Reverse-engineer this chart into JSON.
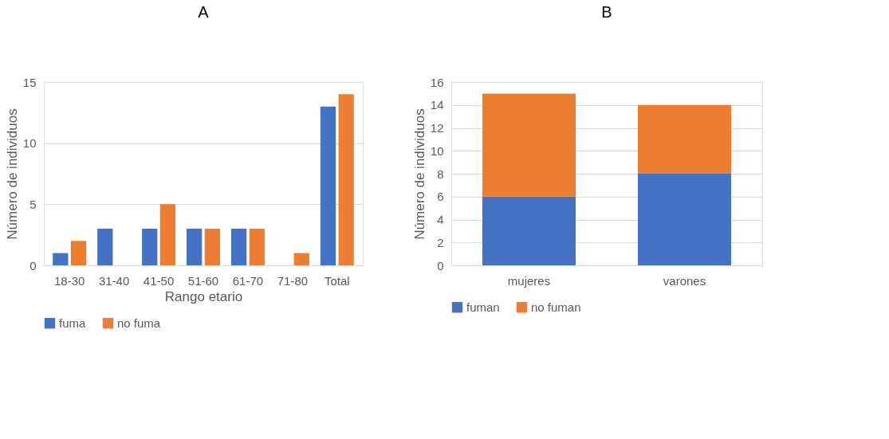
{
  "chart_data": [
    {
      "type": "bar",
      "title": "A",
      "xlabel": "Rango etario",
      "ylabel": "Número de individuos",
      "categories": [
        "18-30",
        "31-40",
        "41-50",
        "51-60",
        "61-70",
        "71-80",
        "Total"
      ],
      "series": [
        {
          "name": "fuma",
          "color": "#4472c4",
          "values": [
            1,
            3,
            3,
            3,
            3,
            0,
            13
          ]
        },
        {
          "name": "no fuma",
          "color": "#ed7d31",
          "values": [
            2,
            0,
            5,
            3,
            3,
            1,
            14
          ]
        }
      ],
      "ylim": [
        0,
        15
      ],
      "yticks": [
        0,
        5,
        10,
        15
      ],
      "grid": "y",
      "legend": "bottom"
    },
    {
      "type": "bar",
      "title": "B",
      "ylabel": "Número de individuos",
      "categories": [
        "mujeres",
        "varones"
      ],
      "stacked": true,
      "series": [
        {
          "name": "fuman",
          "color": "#4472c4",
          "values": [
            6,
            8
          ]
        },
        {
          "name": "no fuman",
          "color": "#ed7d31",
          "values": [
            9,
            6
          ]
        }
      ],
      "ylim": [
        0,
        16
      ],
      "yticks": [
        0,
        2,
        4,
        6,
        8,
        10,
        12,
        14,
        16
      ],
      "grid": "y",
      "legend": "bottom"
    }
  ]
}
